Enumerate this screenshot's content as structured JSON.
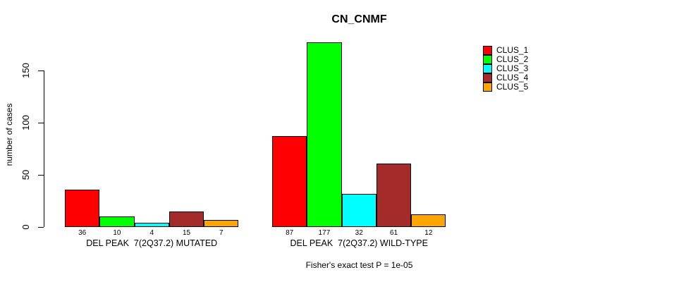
{
  "chart_data": {
    "type": "bar",
    "grouped": true,
    "title": "CN_CNMF",
    "ylabel": "number of cases",
    "xlabel": "",
    "categories": [
      "DEL PEAK  7(2Q37.2) MUTATED",
      "DEL PEAK  7(2Q37.2) WILD-TYPE"
    ],
    "series": [
      {
        "name": "CLUS_1",
        "color": "#FF0000",
        "values": [
          36,
          87
        ]
      },
      {
        "name": "CLUS_2",
        "color": "#00FF00",
        "values": [
          10,
          177
        ]
      },
      {
        "name": "CLUS_3",
        "color": "#00FFFF",
        "values": [
          4,
          32
        ]
      },
      {
        "name": "CLUS_4",
        "color": "#A52A2A",
        "values": [
          15,
          61
        ]
      },
      {
        "name": "CLUS_5",
        "color": "#FFA500",
        "values": [
          7,
          12
        ]
      }
    ],
    "yticks": [
      0,
      50,
      100,
      150
    ],
    "ylim": [
      0,
      180
    ],
    "grid": false,
    "legend_position": "right",
    "bar_value_labels": true,
    "annotation": "Fisher's exact test P = 1e-05"
  }
}
